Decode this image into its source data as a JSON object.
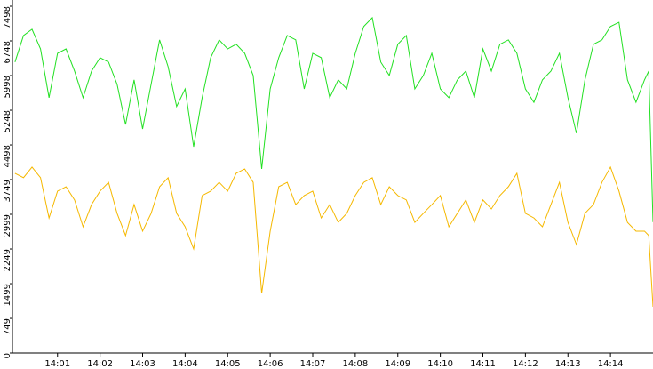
{
  "chart_data": {
    "type": "line",
    "x": [
      0,
      0.2,
      0.4,
      0.6,
      0.8,
      1,
      1.2,
      1.4,
      1.6,
      1.8,
      2,
      2.2,
      2.4,
      2.6,
      2.8,
      3,
      3.2,
      3.4,
      3.6,
      3.8,
      4,
      4.2,
      4.4,
      4.6,
      4.8,
      5,
      5.2,
      5.4,
      5.6,
      5.8,
      6,
      6.2,
      6.4,
      6.6,
      6.8,
      7,
      7.2,
      7.4,
      7.6,
      7.8,
      8,
      8.2,
      8.4,
      8.6,
      8.8,
      9,
      9.2,
      9.4,
      9.6,
      9.8,
      10,
      10.2,
      10.4,
      10.6,
      10.8,
      11,
      11.2,
      11.4,
      11.6,
      11.8,
      12,
      12.2,
      12.4,
      12.6,
      12.8,
      13,
      13.2,
      13.4,
      13.6,
      13.8,
      14,
      14.2,
      14.4,
      14.6,
      14.8,
      14.9,
      15
    ],
    "series": [
      {
        "color": "#22e022",
        "values": [
          6290,
          6865,
          7000,
          6575,
          5520,
          6480,
          6575,
          6095,
          5520,
          6095,
          6385,
          6290,
          5810,
          4940,
          5905,
          4845,
          5810,
          6770,
          6190,
          5330,
          5710,
          4460,
          5520,
          6385,
          6770,
          6575,
          6675,
          6480,
          6000,
          3980,
          5710,
          6385,
          6865,
          6770,
          5710,
          6480,
          6385,
          5520,
          5905,
          5710,
          6480,
          7060,
          7250,
          6290,
          6000,
          6675,
          6865,
          5710,
          6000,
          6480,
          5710,
          5520,
          5905,
          6095,
          5520,
          6575,
          6095,
          6675,
          6770,
          6480,
          5710,
          5420,
          5905,
          6095,
          6480,
          5520,
          4750,
          5905,
          6675,
          6770,
          7060,
          7150,
          5905,
          5420,
          5905,
          6095,
          2830
        ]
      },
      {
        "color": "#f5b800",
        "values": [
          3885,
          3790,
          4020,
          3790,
          2920,
          3500,
          3595,
          3310,
          2730,
          3210,
          3500,
          3690,
          3020,
          2540,
          3210,
          2635,
          3020,
          3595,
          3790,
          3020,
          2730,
          2250,
          3405,
          3500,
          3690,
          3500,
          3885,
          3980,
          3690,
          1290,
          2635,
          3595,
          3690,
          3210,
          3405,
          3500,
          2920,
          3210,
          2825,
          3020,
          3405,
          3690,
          3790,
          3210,
          3595,
          3405,
          3310,
          2825,
          3020,
          3210,
          3405,
          2730,
          3020,
          3310,
          2825,
          3310,
          3115,
          3405,
          3595,
          3885,
          3020,
          2920,
          2730,
          3210,
          3690,
          2825,
          2345,
          3020,
          3210,
          3690,
          4020,
          3500,
          2825,
          2635,
          2635,
          2540,
          1000
        ]
      }
    ],
    "xlim": [
      -0.06,
      15.0
    ],
    "xticks": [
      {
        "value": 1,
        "label": "14:01"
      },
      {
        "value": 2,
        "label": "14:02"
      },
      {
        "value": 3,
        "label": "14:03"
      },
      {
        "value": 4,
        "label": "14:04"
      },
      {
        "value": 5,
        "label": "14:05"
      },
      {
        "value": 6,
        "label": "14:06"
      },
      {
        "value": 7,
        "label": "14:07"
      },
      {
        "value": 8,
        "label": "14:08"
      },
      {
        "value": 9,
        "label": "14:09"
      },
      {
        "value": 10,
        "label": "14:10"
      },
      {
        "value": 11,
        "label": "14:11"
      },
      {
        "value": 12,
        "label": "14:12"
      },
      {
        "value": 13,
        "label": "14:13"
      },
      {
        "value": 14,
        "label": "14:14"
      }
    ],
    "ylim": [
      0,
      7498
    ],
    "yticks": [
      0,
      749,
      1499,
      2249,
      2999,
      3749,
      4498,
      5248,
      5998,
      6748,
      7498
    ]
  }
}
